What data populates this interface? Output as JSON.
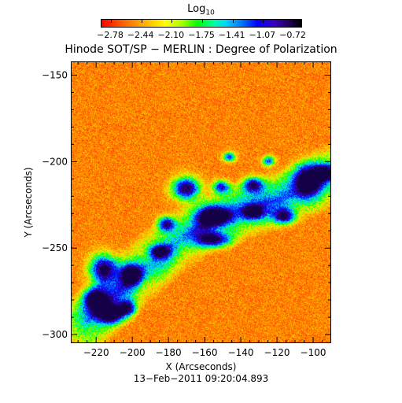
{
  "colorbar": {
    "label": "Log",
    "label_subscript": "10",
    "tick_labels": [
      "−2.78",
      "−2.44",
      "−2.10",
      "−1.75",
      "−1.41",
      "−1.07",
      "−0.72"
    ]
  },
  "title": "Hinode SOT/SP − MERLIN : Degree of Polarization",
  "axes": {
    "xlabel": "X (Arcseconds)",
    "ylabel": "Y (Arcseconds)",
    "xticks": [
      "−220",
      "−200",
      "−180",
      "−160",
      "−140",
      "−120",
      "−100"
    ],
    "xtick_values": [
      -220,
      -200,
      -180,
      -160,
      -140,
      -120,
      -100
    ],
    "yticks": [
      "−150",
      "−200",
      "−250",
      "−300"
    ],
    "ytick_values": [
      -150,
      -200,
      -250,
      -300
    ],
    "xlim": [
      -234,
      -90
    ],
    "ylim": [
      -305,
      -142
    ]
  },
  "timestamp": "13−Feb−2011 09:20:04.893"
}
